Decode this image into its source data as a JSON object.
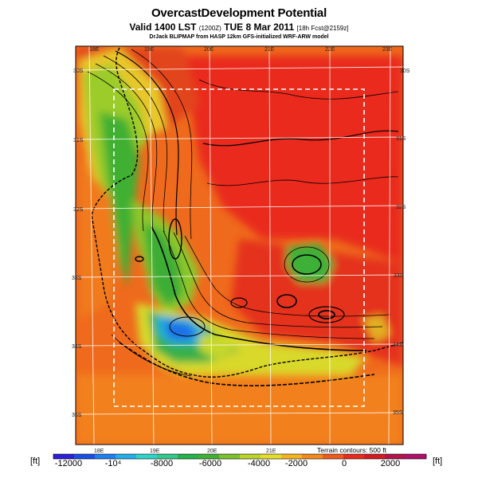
{
  "title": "OvercastDevelopment Potential",
  "subtitle": {
    "main": "Valid 1400 LST",
    "z": "(1200Z)",
    "date": "TUE 8 Mar 2011",
    "meta": "[18h Fcst@2159z]"
  },
  "credit": "DrJack BLIPMAP from HASP 12km GFS-initialized WRF-ARW model",
  "map": {
    "lon_labels_top": [
      "18E",
      "19E",
      "20E",
      "21E",
      "22E",
      "23E"
    ],
    "lon_labels_bottom": [
      "18E",
      "19E",
      "20E",
      "21E"
    ],
    "lat_labels_left": [
      "30S",
      "31S",
      "32S",
      "33S",
      "34S",
      "35S"
    ],
    "lat_labels_right": [
      "30S",
      "31S",
      "32S",
      "33S",
      "34S",
      "35S"
    ],
    "terrain_note": "Terrain contours: 500 ft"
  },
  "colorbar": {
    "unit_left": "[ft]",
    "unit_right": "[ft]",
    "ticks": [
      "-12000",
      "-10⁴",
      "-8000",
      "-6000",
      "-4000",
      "-2000",
      "0",
      "2000"
    ],
    "colors": [
      "#2b1fd8",
      "#1a4fe6",
      "#1e7ff0",
      "#22aee8",
      "#2ed3c7",
      "#33c98d",
      "#22b34a",
      "#3fb030",
      "#7cc22a",
      "#b9d425",
      "#e6dc2a",
      "#f4b41e",
      "#f28a1a",
      "#ef5a19",
      "#ea2a1a",
      "#d41a22",
      "#b4124a",
      "#b0106a"
    ]
  }
}
